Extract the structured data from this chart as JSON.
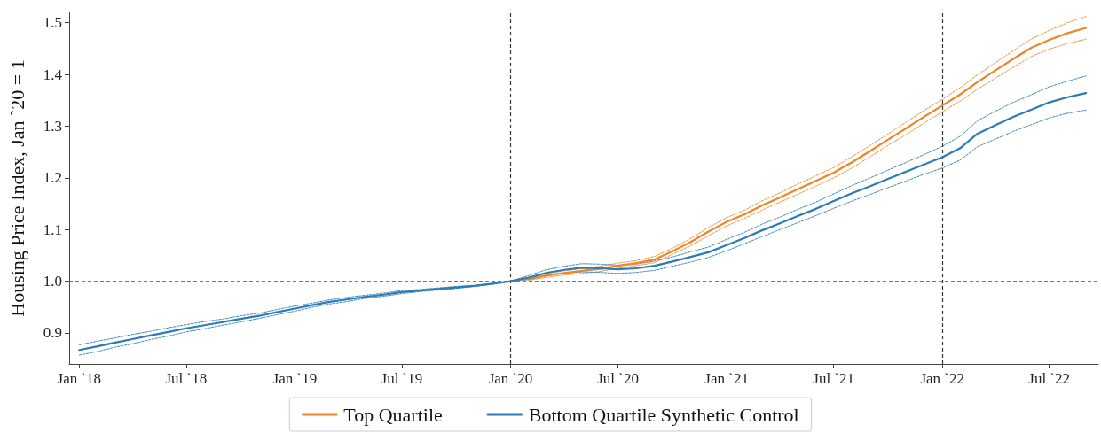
{
  "chart_data": {
    "type": "line",
    "ylabel": "Housing Price Index, Jan `20 = 1",
    "x": [
      "2018-01",
      "2018-02",
      "2018-03",
      "2018-04",
      "2018-05",
      "2018-06",
      "2018-07",
      "2018-08",
      "2018-09",
      "2018-10",
      "2018-11",
      "2018-12",
      "2019-01",
      "2019-02",
      "2019-03",
      "2019-04",
      "2019-05",
      "2019-06",
      "2019-07",
      "2019-08",
      "2019-09",
      "2019-10",
      "2019-11",
      "2019-12",
      "2020-01",
      "2020-02",
      "2020-03",
      "2020-04",
      "2020-05",
      "2020-06",
      "2020-07",
      "2020-08",
      "2020-09",
      "2020-10",
      "2020-11",
      "2020-12",
      "2021-01",
      "2021-02",
      "2021-03",
      "2021-04",
      "2021-05",
      "2021-06",
      "2021-07",
      "2021-08",
      "2021-09",
      "2021-10",
      "2021-11",
      "2021-12",
      "2022-01",
      "2022-02",
      "2022-03",
      "2022-04",
      "2022-05",
      "2022-06",
      "2022-07",
      "2022-08",
      "2022-09"
    ],
    "series": [
      {
        "color": "#ef8525",
        "line_style": "dashed",
        "values": [
          null,
          null,
          null,
          null,
          null,
          null,
          null,
          null,
          null,
          null,
          null,
          null,
          null,
          null,
          null,
          null,
          null,
          null,
          null,
          null,
          null,
          null,
          null,
          null,
          null,
          1.002,
          1.007,
          1.012,
          1.015,
          1.019,
          1.025,
          1.03,
          1.036,
          1.052,
          1.069,
          1.088,
          1.107,
          1.122,
          1.137,
          1.153,
          1.168,
          1.184,
          1.2,
          1.219,
          1.241,
          1.263,
          1.284,
          1.306,
          1.328,
          1.349,
          1.371,
          1.393,
          1.414,
          1.435,
          1.449,
          1.46,
          1.468
        ]
      },
      {
        "color": "#ef8525",
        "line_style": "dashed",
        "values": [
          null,
          null,
          null,
          null,
          null,
          null,
          null,
          null,
          null,
          null,
          null,
          null,
          null,
          null,
          null,
          null,
          null,
          null,
          null,
          null,
          null,
          null,
          null,
          null,
          null,
          1.008,
          1.015,
          1.02,
          1.025,
          1.029,
          1.035,
          1.04,
          1.048,
          1.064,
          1.083,
          1.104,
          1.123,
          1.138,
          1.155,
          1.171,
          1.188,
          1.204,
          1.22,
          1.241,
          1.263,
          1.285,
          1.308,
          1.33,
          1.352,
          1.375,
          1.399,
          1.423,
          1.446,
          1.469,
          1.485,
          1.5,
          1.512
        ]
      },
      {
        "name": "Top Quartile",
        "color": "#ef8525",
        "values": [
          null,
          null,
          null,
          null,
          null,
          null,
          null,
          null,
          null,
          null,
          null,
          null,
          null,
          null,
          null,
          null,
          null,
          null,
          null,
          null,
          null,
          null,
          null,
          null,
          1.0,
          1.005,
          1.011,
          1.016,
          1.02,
          1.024,
          1.03,
          1.035,
          1.042,
          1.058,
          1.076,
          1.096,
          1.115,
          1.13,
          1.146,
          1.162,
          1.178,
          1.194,
          1.21,
          1.23,
          1.252,
          1.274,
          1.296,
          1.318,
          1.34,
          1.362,
          1.385,
          1.408,
          1.43,
          1.452,
          1.467,
          1.48,
          1.49
        ]
      },
      {
        "color": "#2c7bb6",
        "line_style": "dashed",
        "values": [
          0.857,
          0.864,
          0.872,
          0.879,
          0.887,
          0.894,
          0.902,
          0.908,
          0.915,
          0.921,
          0.928,
          0.935,
          0.942,
          0.95,
          0.956,
          0.961,
          0.967,
          0.971,
          0.976,
          0.98,
          0.983,
          0.986,
          0.99,
          0.994,
          1.0,
          1.003,
          1.01,
          1.015,
          1.018,
          1.017,
          1.015,
          1.017,
          1.021,
          1.029,
          1.037,
          1.046,
          1.059,
          1.073,
          1.086,
          1.1,
          1.113,
          1.127,
          1.141,
          1.155,
          1.168,
          1.181,
          1.194,
          1.207,
          1.219,
          1.235,
          1.26,
          1.275,
          1.29,
          1.303,
          1.316,
          1.325,
          1.331
        ]
      },
      {
        "color": "#2c7bb6",
        "line_style": "dashed",
        "values": [
          0.877,
          0.884,
          0.89,
          0.897,
          0.903,
          0.91,
          0.916,
          0.922,
          0.927,
          0.933,
          0.938,
          0.945,
          0.952,
          0.958,
          0.964,
          0.969,
          0.973,
          0.977,
          0.982,
          0.984,
          0.987,
          0.99,
          0.992,
          0.996,
          1.0,
          1.011,
          1.022,
          1.029,
          1.034,
          1.033,
          1.031,
          1.033,
          1.039,
          1.047,
          1.057,
          1.066,
          1.081,
          1.095,
          1.11,
          1.124,
          1.139,
          1.153,
          1.169,
          1.185,
          1.2,
          1.215,
          1.23,
          1.245,
          1.261,
          1.281,
          1.31,
          1.329,
          1.346,
          1.361,
          1.376,
          1.387,
          1.397
        ]
      },
      {
        "name": "Bottom Quartile Synthetic Control",
        "color": "#2c7bb6",
        "values": [
          0.867,
          0.874,
          0.881,
          0.888,
          0.895,
          0.902,
          0.909,
          0.915,
          0.921,
          0.927,
          0.933,
          0.94,
          0.947,
          0.954,
          0.96,
          0.965,
          0.97,
          0.974,
          0.979,
          0.982,
          0.985,
          0.988,
          0.991,
          0.995,
          1.0,
          1.007,
          1.016,
          1.022,
          1.026,
          1.025,
          1.023,
          1.025,
          1.03,
          1.038,
          1.047,
          1.056,
          1.07,
          1.084,
          1.098,
          1.112,
          1.126,
          1.14,
          1.155,
          1.17,
          1.184,
          1.198,
          1.212,
          1.226,
          1.24,
          1.258,
          1.285,
          1.302,
          1.318,
          1.332,
          1.346,
          1.356,
          1.364
        ]
      }
    ],
    "xlim": [
      "2017-12-15",
      "2022-09-22"
    ],
    "xticks": [
      {
        "value": "2018-01",
        "label": "Jan `18"
      },
      {
        "value": "2018-07",
        "label": "Jul `18"
      },
      {
        "value": "2019-01",
        "label": "Jan `19"
      },
      {
        "value": "2019-07",
        "label": "Jul `19"
      },
      {
        "value": "2020-01",
        "label": "Jan `20"
      },
      {
        "value": "2020-07",
        "label": "Jul `20"
      },
      {
        "value": "2021-01",
        "label": "Jan `21"
      },
      {
        "value": "2021-07",
        "label": "Jul `21"
      },
      {
        "value": "2022-01",
        "label": "Jan `22"
      },
      {
        "value": "2022-07",
        "label": "Jul `22"
      }
    ],
    "ylim": [
      0.84,
      1.52
    ],
    "yticks": [
      {
        "value": 0.9,
        "label": "0.9"
      },
      {
        "value": 1.0,
        "label": "1.0"
      },
      {
        "value": 1.1,
        "label": "1.1"
      },
      {
        "value": 1.2,
        "label": "1.2"
      },
      {
        "value": 1.3,
        "label": "1.3"
      },
      {
        "value": 1.4,
        "label": "1.4"
      },
      {
        "value": 1.5,
        "label": "1.5"
      }
    ],
    "ref_lines": [
      {
        "axis": "y",
        "value": 1.0,
        "color": "#e8484a",
        "line_style": "dashed"
      },
      {
        "axis": "x",
        "value": "2020-01",
        "color": "#333333",
        "line_style": "dashed"
      },
      {
        "axis": "x",
        "value": "2022-01",
        "color": "#333333",
        "line_style": "dashed"
      }
    ],
    "grid": false,
    "legend": "bottom",
    "line_style": "solid",
    "marker": "none"
  }
}
